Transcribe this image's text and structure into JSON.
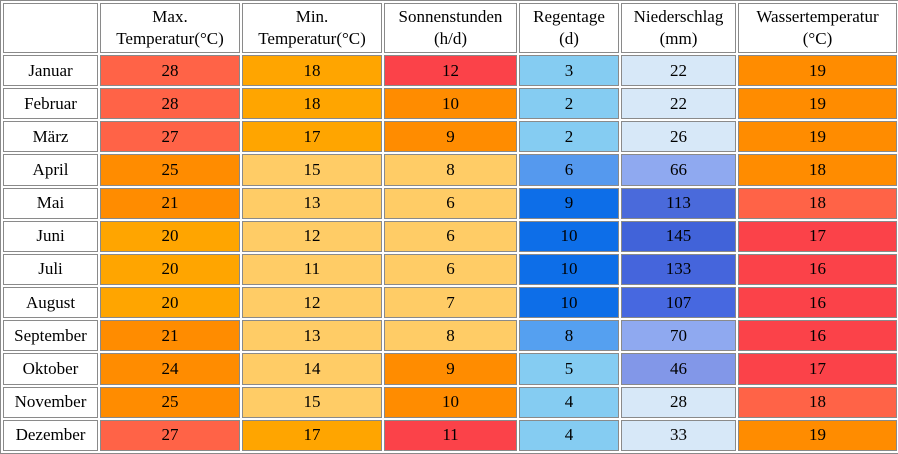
{
  "table": {
    "columns": [
      {
        "line1": "",
        "line2": ""
      },
      {
        "line1": "Max.",
        "line2": "Temperatur(°C)"
      },
      {
        "line1": "Min.",
        "line2": "Temperatur(°C)"
      },
      {
        "line1": "Sonnenstunden",
        "line2": "(h/d)"
      },
      {
        "line1": "Regentage",
        "line2": "(d)"
      },
      {
        "line1": "Niederschlag",
        "line2": "(mm)"
      },
      {
        "line1": "Wassertemperatur",
        "line2": "(°C)"
      }
    ],
    "cell_names": [
      "max-temp-cell",
      "min-temp-cell",
      "sun-hours-cell",
      "rain-days-cell",
      "precipitation-cell",
      "water-temp-cell"
    ],
    "rows": [
      {
        "month": "Januar",
        "cells": [
          {
            "value": "28",
            "color": "#FF6347"
          },
          {
            "value": "18",
            "color": "#FFA500"
          },
          {
            "value": "12",
            "color": "#FB4249"
          },
          {
            "value": "3",
            "color": "#85CCF2"
          },
          {
            "value": "22",
            "color": "#D7E8F8"
          },
          {
            "value": "19",
            "color": "#FF8C00"
          }
        ]
      },
      {
        "month": "Februar",
        "cells": [
          {
            "value": "28",
            "color": "#FF6347"
          },
          {
            "value": "18",
            "color": "#FFA500"
          },
          {
            "value": "10",
            "color": "#FF8C00"
          },
          {
            "value": "2",
            "color": "#85CCF2"
          },
          {
            "value": "22",
            "color": "#D7E8F8"
          },
          {
            "value": "19",
            "color": "#FF8C00"
          }
        ]
      },
      {
        "month": "März",
        "cells": [
          {
            "value": "27",
            "color": "#FF6347"
          },
          {
            "value": "17",
            "color": "#FFA500"
          },
          {
            "value": "9",
            "color": "#FF8C00"
          },
          {
            "value": "2",
            "color": "#85CCF2"
          },
          {
            "value": "26",
            "color": "#D7E8F8"
          },
          {
            "value": "19",
            "color": "#FF8C00"
          }
        ]
      },
      {
        "month": "April",
        "cells": [
          {
            "value": "25",
            "color": "#FF8C00"
          },
          {
            "value": "15",
            "color": "#FFCC66"
          },
          {
            "value": "8",
            "color": "#FFCC66"
          },
          {
            "value": "6",
            "color": "#5599EE"
          },
          {
            "value": "66",
            "color": "#8FA9F0"
          },
          {
            "value": "18",
            "color": "#FF8C00"
          }
        ]
      },
      {
        "month": "Mai",
        "cells": [
          {
            "value": "21",
            "color": "#FF8C00"
          },
          {
            "value": "13",
            "color": "#FFCC66"
          },
          {
            "value": "6",
            "color": "#FFCC66"
          },
          {
            "value": "9",
            "color": "#0D6EE8"
          },
          {
            "value": "113",
            "color": "#4A6ADB"
          },
          {
            "value": "18",
            "color": "#FF6347"
          }
        ]
      },
      {
        "month": "Juni",
        "cells": [
          {
            "value": "20",
            "color": "#FFA500"
          },
          {
            "value": "12",
            "color": "#FFCC66"
          },
          {
            "value": "6",
            "color": "#FFCC66"
          },
          {
            "value": "10",
            "color": "#0D6EE8"
          },
          {
            "value": "145",
            "color": "#4163D9"
          },
          {
            "value": "17",
            "color": "#FB4249"
          }
        ]
      },
      {
        "month": "Juli",
        "cells": [
          {
            "value": "20",
            "color": "#FFA500"
          },
          {
            "value": "11",
            "color": "#FFCC66"
          },
          {
            "value": "6",
            "color": "#FFCC66"
          },
          {
            "value": "10",
            "color": "#0D6EE8"
          },
          {
            "value": "133",
            "color": "#4565DC"
          },
          {
            "value": "16",
            "color": "#FB4249"
          }
        ]
      },
      {
        "month": "August",
        "cells": [
          {
            "value": "20",
            "color": "#FFA500"
          },
          {
            "value": "12",
            "color": "#FFCC66"
          },
          {
            "value": "7",
            "color": "#FFCC66"
          },
          {
            "value": "10",
            "color": "#0D6EE8"
          },
          {
            "value": "107",
            "color": "#4768E0"
          },
          {
            "value": "16",
            "color": "#FB4249"
          }
        ]
      },
      {
        "month": "September",
        "cells": [
          {
            "value": "21",
            "color": "#FF8C00"
          },
          {
            "value": "13",
            "color": "#FFCC66"
          },
          {
            "value": "8",
            "color": "#FFCC66"
          },
          {
            "value": "8",
            "color": "#55A0F0"
          },
          {
            "value": "70",
            "color": "#8FA9F0"
          },
          {
            "value": "16",
            "color": "#FB4249"
          }
        ]
      },
      {
        "month": "Oktober",
        "cells": [
          {
            "value": "24",
            "color": "#FF8C00"
          },
          {
            "value": "14",
            "color": "#FFCC66"
          },
          {
            "value": "9",
            "color": "#FF8C00"
          },
          {
            "value": "5",
            "color": "#85CCF2"
          },
          {
            "value": "46",
            "color": "#8297E8"
          },
          {
            "value": "17",
            "color": "#FB4249"
          }
        ]
      },
      {
        "month": "November",
        "cells": [
          {
            "value": "25",
            "color": "#FF8C00"
          },
          {
            "value": "15",
            "color": "#FFCC66"
          },
          {
            "value": "10",
            "color": "#FF8C00"
          },
          {
            "value": "4",
            "color": "#85CCF2"
          },
          {
            "value": "28",
            "color": "#D7E8F8"
          },
          {
            "value": "18",
            "color": "#FF6347"
          }
        ]
      },
      {
        "month": "Dezember",
        "cells": [
          {
            "value": "27",
            "color": "#FF6347"
          },
          {
            "value": "17",
            "color": "#FFA500"
          },
          {
            "value": "11",
            "color": "#FB4249"
          },
          {
            "value": "4",
            "color": "#85CCF2"
          },
          {
            "value": "33",
            "color": "#D7E8F8"
          },
          {
            "value": "19",
            "color": "#FF8C00"
          }
        ]
      }
    ]
  },
  "chart_data": {
    "type": "table",
    "title": "",
    "categories": [
      "Januar",
      "Februar",
      "März",
      "April",
      "Mai",
      "Juni",
      "Juli",
      "August",
      "September",
      "Oktober",
      "November",
      "Dezember"
    ],
    "series": [
      {
        "name": "Max. Temperatur(°C)",
        "values": [
          28,
          28,
          27,
          25,
          21,
          20,
          20,
          20,
          21,
          24,
          25,
          27
        ]
      },
      {
        "name": "Min. Temperatur(°C)",
        "values": [
          18,
          18,
          17,
          15,
          13,
          12,
          11,
          12,
          13,
          14,
          15,
          17
        ]
      },
      {
        "name": "Sonnenstunden (h/d)",
        "values": [
          12,
          10,
          9,
          8,
          6,
          6,
          6,
          7,
          8,
          9,
          10,
          11
        ]
      },
      {
        "name": "Regentage (d)",
        "values": [
          3,
          2,
          2,
          6,
          9,
          10,
          10,
          10,
          8,
          5,
          4,
          4
        ]
      },
      {
        "name": "Niederschlag (mm)",
        "values": [
          22,
          22,
          26,
          66,
          113,
          145,
          133,
          107,
          70,
          46,
          28,
          33
        ]
      },
      {
        "name": "Wassertemperatur (°C)",
        "values": [
          19,
          19,
          19,
          18,
          18,
          17,
          16,
          16,
          16,
          17,
          18,
          19
        ]
      }
    ],
    "legend_position": "none",
    "grid": true
  },
  "colors": {
    "hot_salmon": "#FF6347",
    "orange": "#FFA500",
    "dark_orange": "#FF8C00",
    "light_orange": "#FFCC66",
    "red": "#FB4249",
    "sky_blue": "#85CCF2",
    "medium_blue": "#5599EE",
    "strong_blue": "#0D6EE8",
    "pale_blue": "#D7E8F8",
    "periwinkle": "#8297E8",
    "cornflower": "#8FA9F0",
    "royal_blue": "#4163D9",
    "border_gray": "#8a8a8a",
    "background": "#ffffff"
  }
}
